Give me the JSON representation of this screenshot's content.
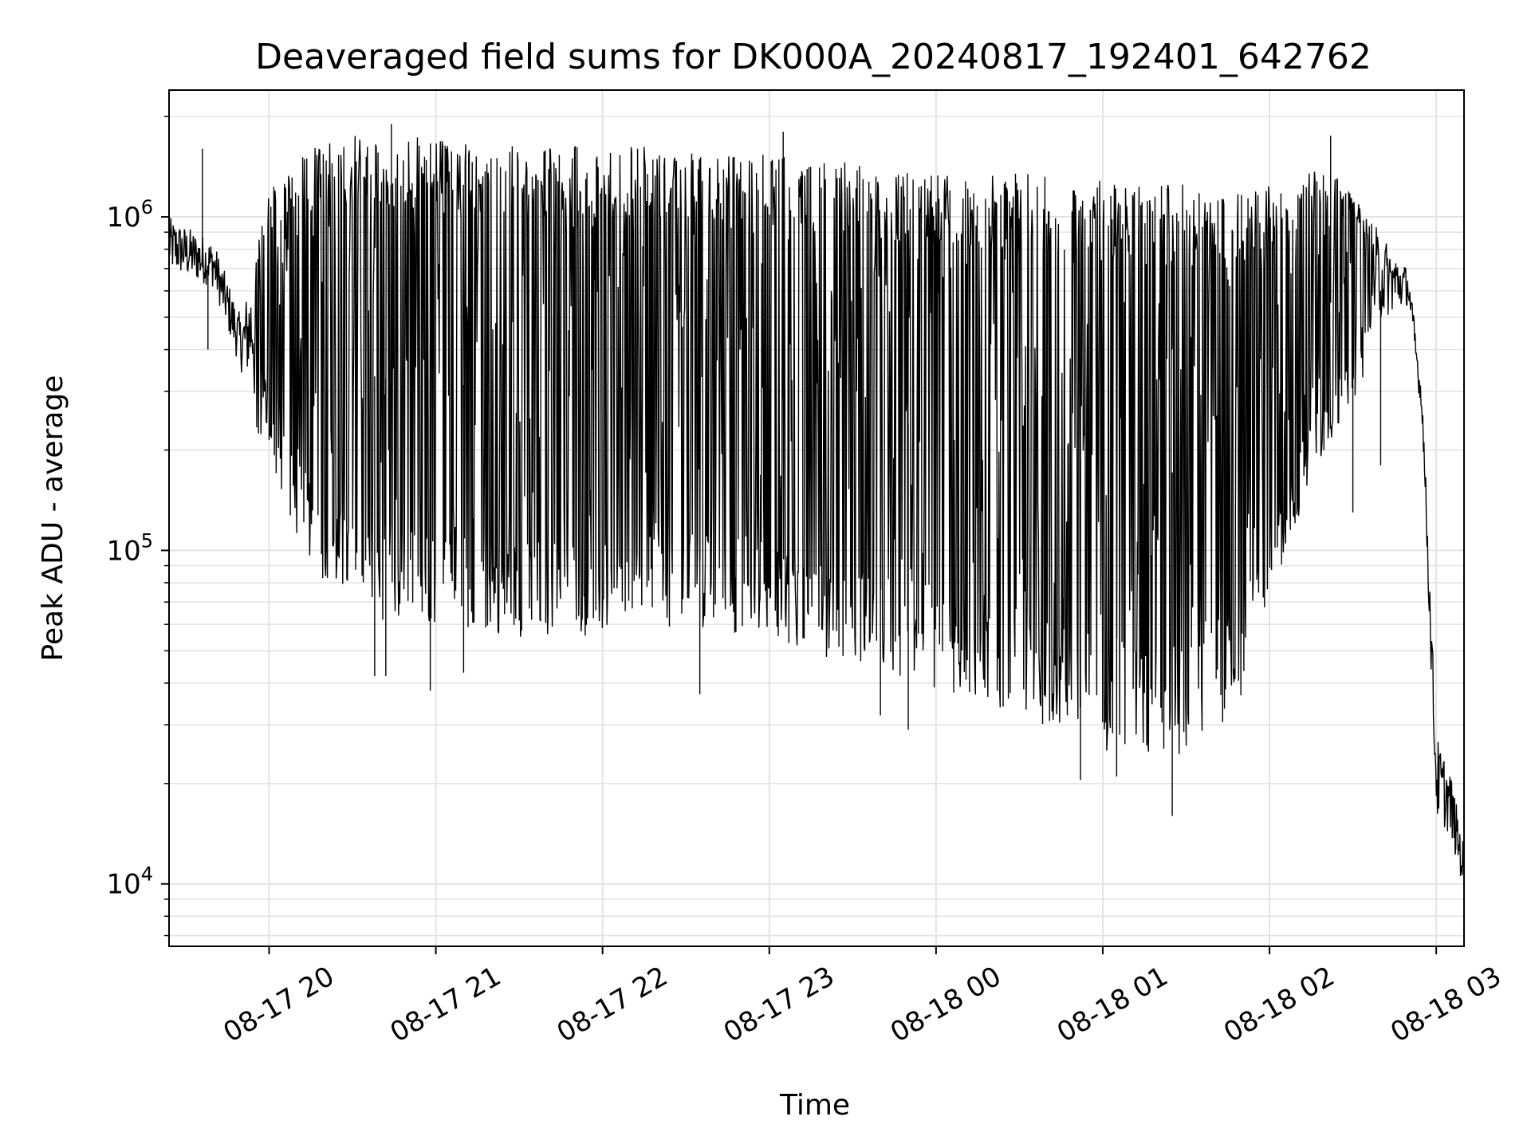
{
  "chart_data": {
    "type": "line",
    "title": "Deaveraged field sums for DK000A_20240817_192401_642762",
    "xlabel": "Time",
    "ylabel": "Peak ADU - average",
    "yscale": "log",
    "xlim": [
      "2024-08-17 19:24",
      "2024-08-18 03:10"
    ],
    "ylim": [
      6500,
      2400000
    ],
    "grid": true,
    "x_ticks": [
      {
        "t": "2024-08-17 20:00",
        "label": "08-17 20"
      },
      {
        "t": "2024-08-17 21:00",
        "label": "08-17 21"
      },
      {
        "t": "2024-08-17 22:00",
        "label": "08-17 22"
      },
      {
        "t": "2024-08-17 23:00",
        "label": "08-17 23"
      },
      {
        "t": "2024-08-18 00:00",
        "label": "08-18 00"
      },
      {
        "t": "2024-08-18 01:00",
        "label": "08-18 01"
      },
      {
        "t": "2024-08-18 02:00",
        "label": "08-18 02"
      },
      {
        "t": "2024-08-18 03:00",
        "label": "08-18 03"
      }
    ],
    "y_ticks": [
      {
        "value": 10000,
        "base": "10",
        "exp": "4"
      },
      {
        "value": 100000,
        "base": "10",
        "exp": "5"
      },
      {
        "value": 1000000,
        "base": "10",
        "exp": "6"
      }
    ],
    "series_color": "#000000",
    "envelope": [
      {
        "t": "2024-08-17 19:24",
        "high": 1000000,
        "low": 600000
      },
      {
        "t": "2024-08-17 19:40",
        "high": 850000,
        "low": 550000
      },
      {
        "t": "2024-08-17 19:50",
        "high": 500000,
        "low": 300000
      },
      {
        "t": "2024-08-17 20:00",
        "high": 1200000,
        "low": 180000
      },
      {
        "t": "2024-08-17 20:10",
        "high": 1500000,
        "low": 110000
      },
      {
        "t": "2024-08-17 20:20",
        "high": 1700000,
        "low": 80000
      },
      {
        "t": "2024-08-17 20:40",
        "high": 1800000,
        "low": 60000
      },
      {
        "t": "2024-08-17 21:00",
        "high": 1700000,
        "low": 60000
      },
      {
        "t": "2024-08-17 21:30",
        "high": 1650000,
        "low": 55000
      },
      {
        "t": "2024-08-17 22:00",
        "high": 1650000,
        "low": 55000
      },
      {
        "t": "2024-08-17 22:30",
        "high": 1600000,
        "low": 58000
      },
      {
        "t": "2024-08-17 23:00",
        "high": 1550000,
        "low": 55000
      },
      {
        "t": "2024-08-17 23:30",
        "high": 1450000,
        "low": 45000
      },
      {
        "t": "2024-08-18 00:00",
        "high": 1400000,
        "low": 38000
      },
      {
        "t": "2024-08-18 00:30",
        "high": 1350000,
        "low": 32000
      },
      {
        "t": "2024-08-18 01:00",
        "high": 1300000,
        "low": 25000
      },
      {
        "t": "2024-08-18 01:30",
        "high": 1250000,
        "low": 23000
      },
      {
        "t": "2024-08-18 01:50",
        "high": 1200000,
        "low": 35000
      },
      {
        "t": "2024-08-18 02:10",
        "high": 1300000,
        "low": 120000
      },
      {
        "t": "2024-08-18 02:20",
        "high": 1500000,
        "low": 200000
      },
      {
        "t": "2024-08-18 02:40",
        "high": 900000,
        "low": 400000
      },
      {
        "t": "2024-08-18 02:50",
        "high": 700000,
        "low": 500000
      },
      {
        "t": "2024-08-18 02:55",
        "high": 300000,
        "low": 220000
      },
      {
        "t": "2024-08-18 03:00",
        "high": 28000,
        "low": 13000
      },
      {
        "t": "2024-08-18 03:05",
        "high": 22000,
        "low": 12000
      },
      {
        "t": "2024-08-18 03:10",
        "high": 13000,
        "low": 8500
      }
    ],
    "spikes": [
      {
        "t": "2024-08-17 19:36",
        "value": 1600000
      },
      {
        "t": "2024-08-17 19:38",
        "value": 400000
      },
      {
        "t": "2024-08-17 20:38",
        "value": 42000
      },
      {
        "t": "2024-08-17 20:42",
        "value": 42000
      },
      {
        "t": "2024-08-17 20:44",
        "value": 1900000
      },
      {
        "t": "2024-08-17 20:58",
        "value": 38000
      },
      {
        "t": "2024-08-17 21:10",
        "value": 43000
      },
      {
        "t": "2024-08-17 22:35",
        "value": 37000
      },
      {
        "t": "2024-08-17 23:05",
        "value": 1800000
      },
      {
        "t": "2024-08-17 23:40",
        "value": 32000
      },
      {
        "t": "2024-08-17 23:50",
        "value": 29000
      },
      {
        "t": "2024-08-18 00:05",
        "value": 1200000
      },
      {
        "t": "2024-08-18 00:52",
        "value": 20500
      },
      {
        "t": "2024-08-18 01:05",
        "value": 21000
      },
      {
        "t": "2024-08-18 01:25",
        "value": 16000
      },
      {
        "t": "2024-08-18 02:22",
        "value": 1750000
      },
      {
        "t": "2024-08-18 02:30",
        "value": 130000
      },
      {
        "t": "2024-08-18 02:40",
        "value": 180000
      }
    ]
  }
}
